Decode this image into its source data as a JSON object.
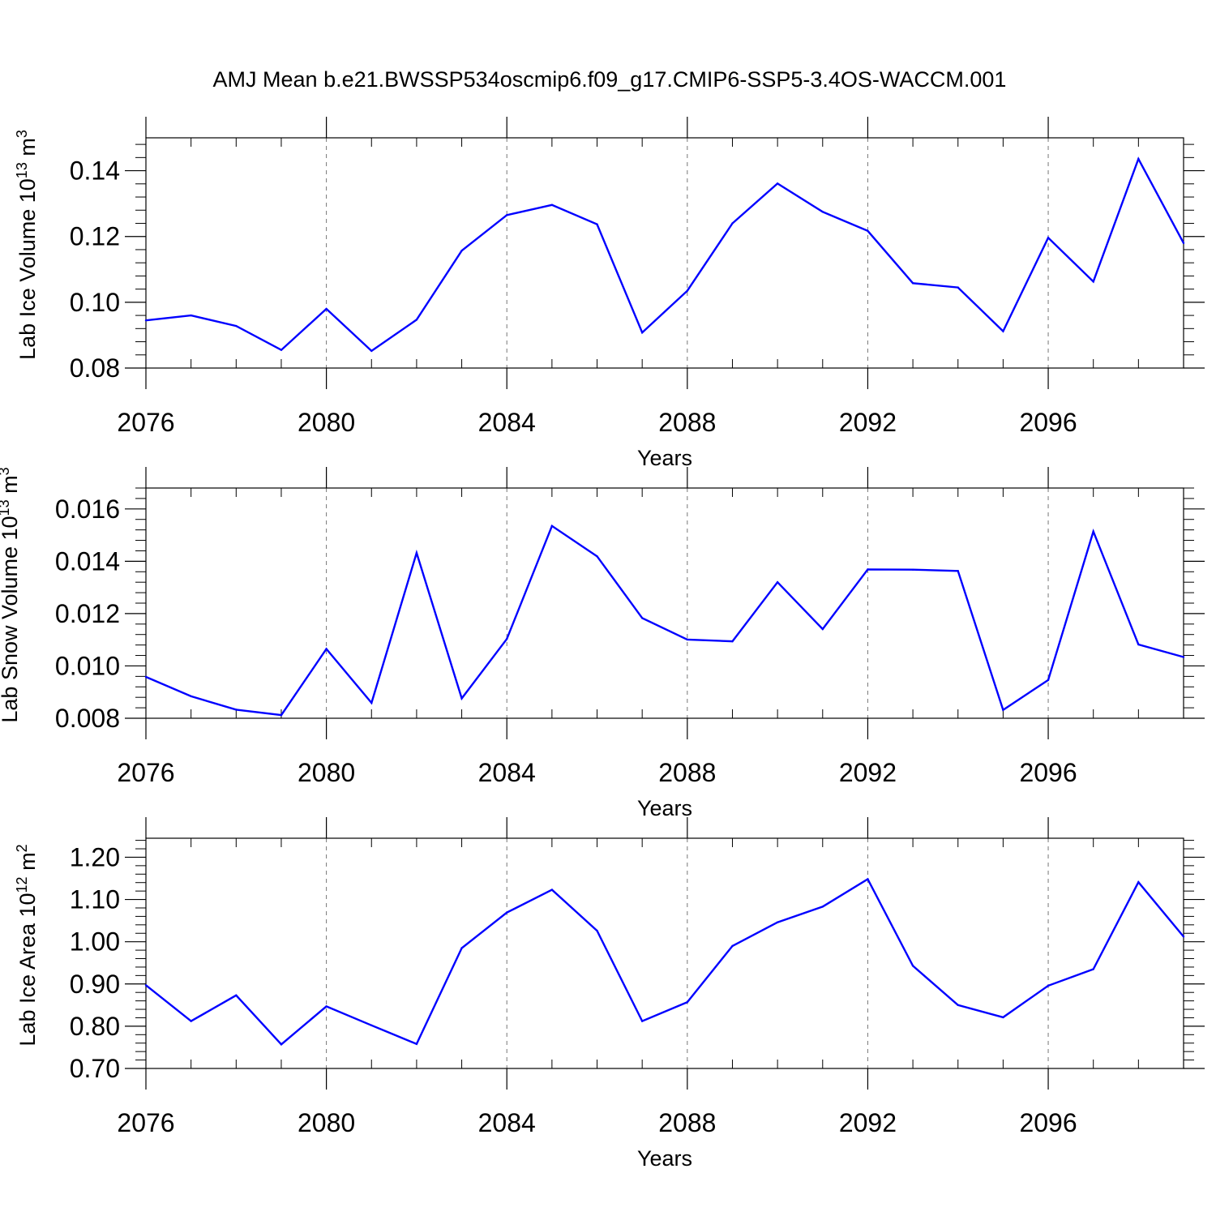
{
  "title": "AMJ Mean b.e21.BWSSP534oscmip6.f09_g17.CMIP6-SSP5-3.4OS-WACCM.001",
  "line_color": "#0000ff",
  "chart_data": [
    {
      "type": "line",
      "xlabel": "Years",
      "ylabel": {
        "text": "Lab Ice Volume 10",
        "exp": "13",
        "unit": " m",
        "unit_exp": "3"
      },
      "xlim": [
        2076,
        2099
      ],
      "ylim": [
        0.08,
        0.15
      ],
      "xticks": [
        2076,
        2080,
        2084,
        2088,
        2092,
        2096
      ],
      "xtick_labels": [
        "2076",
        "2080",
        "2084",
        "2088",
        "2092",
        "2096"
      ],
      "yticks": [
        0.08,
        0.1,
        0.12,
        0.14
      ],
      "ytick_labels": [
        "0.08",
        "0.10",
        "0.12",
        "0.14"
      ],
      "grid": "vertical-dashed",
      "x": [
        2076,
        2077,
        2078,
        2079,
        2080,
        2081,
        2082,
        2083,
        2084,
        2085,
        2086,
        2087,
        2088,
        2089,
        2090,
        2091,
        2092,
        2093,
        2094,
        2095,
        2096,
        2097,
        2098,
        2099
      ],
      "values": [
        0.0945,
        0.096,
        0.0928,
        0.0855,
        0.098,
        0.0852,
        0.0947,
        0.1157,
        0.1265,
        0.1296,
        0.1237,
        0.0908,
        0.1035,
        0.124,
        0.1361,
        0.1275,
        0.1217,
        0.1058,
        0.1045,
        0.0912,
        0.1196,
        0.1063,
        0.1436,
        0.118
      ]
    },
    {
      "type": "line",
      "xlabel": "Years",
      "ylabel": {
        "text": "Lab Snow Volume 10",
        "exp": "13",
        "unit": " m",
        "unit_exp": "3"
      },
      "xlim": [
        2076,
        2099
      ],
      "ylim": [
        0.008,
        0.0168
      ],
      "xticks": [
        2076,
        2080,
        2084,
        2088,
        2092,
        2096
      ],
      "xtick_labels": [
        "2076",
        "2080",
        "2084",
        "2088",
        "2092",
        "2096"
      ],
      "yticks": [
        0.008,
        0.01,
        0.012,
        0.014,
        0.016
      ],
      "ytick_labels": [
        "0.008",
        "0.010",
        "0.012",
        "0.014",
        "0.016"
      ],
      "grid": "vertical-dashed",
      "x": [
        2076,
        2077,
        2078,
        2079,
        2080,
        2081,
        2082,
        2083,
        2084,
        2085,
        2086,
        2087,
        2088,
        2089,
        2090,
        2091,
        2092,
        2093,
        2094,
        2095,
        2096,
        2097,
        2098,
        2099
      ],
      "values": [
        0.00958,
        0.00884,
        0.00833,
        0.00812,
        0.01065,
        0.00859,
        0.01432,
        0.00876,
        0.01103,
        0.01535,
        0.01419,
        0.01183,
        0.01101,
        0.01094,
        0.0132,
        0.01141,
        0.01369,
        0.01368,
        0.01363,
        0.00832,
        0.00946,
        0.01514,
        0.01082,
        0.01034
      ]
    },
    {
      "type": "line",
      "xlabel": "Years",
      "ylabel": {
        "text": "Lab Ice Area 10",
        "exp": "12",
        "unit": " m",
        "unit_exp": "2"
      },
      "xlim": [
        2076,
        2099
      ],
      "ylim": [
        0.7,
        1.245
      ],
      "xticks": [
        2076,
        2080,
        2084,
        2088,
        2092,
        2096
      ],
      "xtick_labels": [
        "2076",
        "2080",
        "2084",
        "2088",
        "2092",
        "2096"
      ],
      "yticks": [
        0.7,
        0.8,
        0.9,
        1.0,
        1.1,
        1.2
      ],
      "ytick_labels": [
        "0.70",
        "0.80",
        "0.90",
        "1.00",
        "1.10",
        "1.20"
      ],
      "grid": "vertical-dashed",
      "x": [
        2076,
        2077,
        2078,
        2079,
        2080,
        2081,
        2082,
        2083,
        2084,
        2085,
        2086,
        2087,
        2088,
        2089,
        2090,
        2091,
        2092,
        2093,
        2094,
        2095,
        2096,
        2097,
        2098,
        2099
      ],
      "values": [
        0.897,
        0.812,
        0.873,
        0.757,
        0.847,
        0.802,
        0.758,
        0.985,
        1.069,
        1.123,
        1.026,
        0.812,
        0.857,
        0.99,
        1.046,
        1.083,
        1.148,
        0.943,
        0.85,
        0.821,
        0.896,
        0.935,
        1.141,
        1.012
      ]
    }
  ]
}
